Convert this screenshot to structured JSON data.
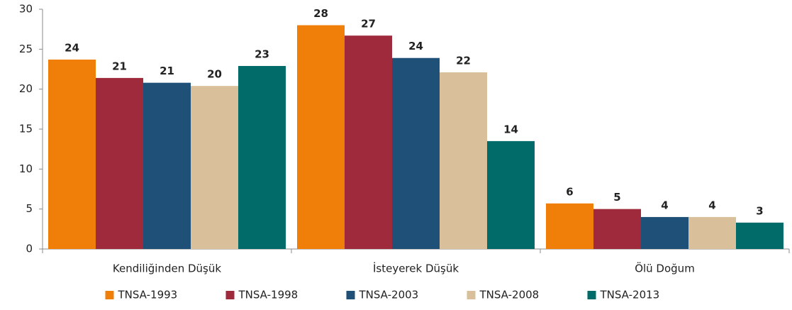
{
  "chart_data": {
    "type": "bar",
    "categories": [
      "Kendiliğinden Düşük",
      "İsteyerek Düşük",
      "Ölü Doğum"
    ],
    "series": [
      {
        "name": "TNSA-1993",
        "color": "#f07f09",
        "values": [
          23.7,
          28.0,
          5.7
        ],
        "value_labels": [
          "24",
          "28",
          "6"
        ]
      },
      {
        "name": "TNSA-1998",
        "color": "#9e2a3b",
        "values": [
          21.4,
          26.7,
          5.0
        ],
        "value_labels": [
          "21",
          "27",
          "5"
        ]
      },
      {
        "name": "TNSA-2003",
        "color": "#1f5077",
        "values": [
          20.8,
          23.9,
          4.0
        ],
        "value_labels": [
          "21",
          "24",
          "4"
        ]
      },
      {
        "name": "TNSA-2008",
        "color": "#d9c09a",
        "values": [
          20.4,
          22.1,
          4.0
        ],
        "value_labels": [
          "20",
          "22",
          "4"
        ]
      },
      {
        "name": "TNSA-2013",
        "color": "#006b68",
        "values": [
          22.9,
          13.5,
          3.3
        ],
        "value_labels": [
          "23",
          "14",
          "3"
        ]
      }
    ],
    "ylim": [
      0,
      30
    ],
    "yticks": [
      0,
      5,
      10,
      15,
      20,
      25,
      30
    ],
    "grid": false,
    "legend": "bottom"
  }
}
